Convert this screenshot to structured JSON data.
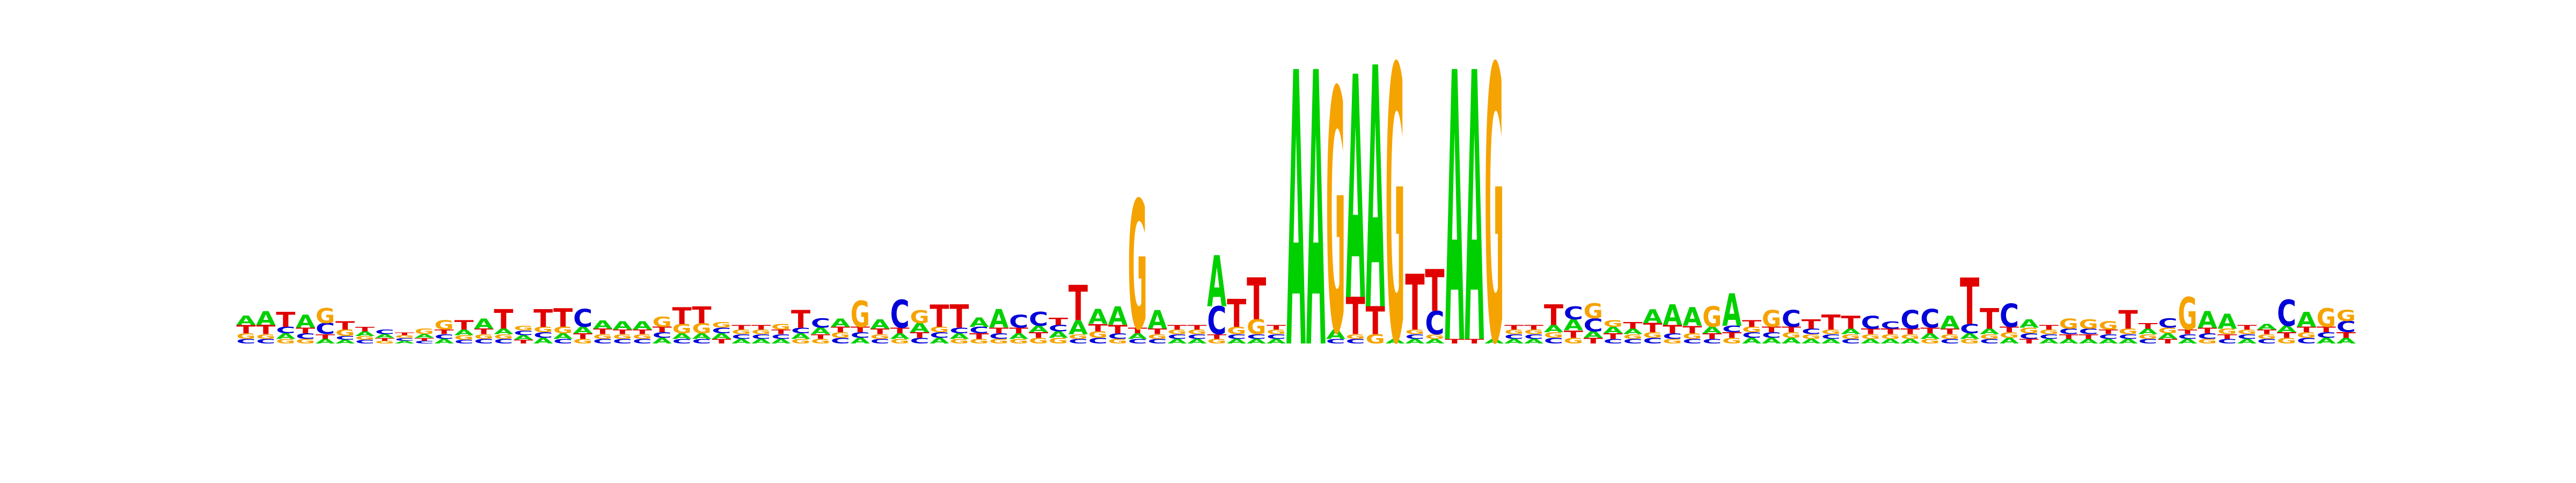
{
  "chart_data": {
    "type": "sequence-logo",
    "alphabet": [
      "A",
      "C",
      "G",
      "T"
    ],
    "colors": {
      "A": "#00d000",
      "C": "#0000d8",
      "G": "#f5a300",
      "T": "#e00000"
    },
    "y_axis_max_bits": 2.0,
    "positions": [
      {
        "A": 0.1,
        "C": 0.05,
        "G": 0.06,
        "T": 0.09
      },
      {
        "A": 0.15,
        "C": 0.05,
        "G": 0.05,
        "T": 0.1
      },
      {
        "A": 0.06,
        "C": 0.07,
        "G": 0.05,
        "T": 0.16
      },
      {
        "A": 0.14,
        "C": 0.06,
        "G": 0.05,
        "T": 0.06
      },
      {
        "A": 0.05,
        "C": 0.12,
        "G": 0.16,
        "T": 0.05
      },
      {
        "A": 0.04,
        "C": 0.04,
        "G": 0.07,
        "T": 0.09
      },
      {
        "A": 0.05,
        "C": 0.04,
        "G": 0.04,
        "T": 0.05
      },
      {
        "A": 0.04,
        "C": 0.05,
        "G": 0.03,
        "T": 0.03
      },
      {
        "A": 0.03,
        "C": 0.03,
        "G": 0.03,
        "T": 0.03
      },
      {
        "A": 0.04,
        "C": 0.03,
        "G": 0.06,
        "T": 0.03
      },
      {
        "A": 0.05,
        "C": 0.05,
        "G": 0.1,
        "T": 0.05
      },
      {
        "A": 0.06,
        "C": 0.04,
        "G": 0.05,
        "T": 0.1
      },
      {
        "A": 0.11,
        "C": 0.05,
        "G": 0.05,
        "T": 0.06
      },
      {
        "A": 0.06,
        "C": 0.05,
        "G": 0.05,
        "T": 0.21
      },
      {
        "A": 0.05,
        "C": 0.05,
        "G": 0.05,
        "T": 0.04
      },
      {
        "A": 0.06,
        "C": 0.06,
        "G": 0.06,
        "T": 0.19
      },
      {
        "A": 0.06,
        "C": 0.05,
        "G": 0.07,
        "T": 0.2
      },
      {
        "A": 0.07,
        "C": 0.19,
        "G": 0.05,
        "T": 0.06
      },
      {
        "A": 0.09,
        "C": 0.05,
        "G": 0.05,
        "T": 0.06
      },
      {
        "A": 0.09,
        "C": 0.05,
        "G": 0.05,
        "T": 0.05
      },
      {
        "A": 0.09,
        "C": 0.05,
        "G": 0.05,
        "T": 0.05
      },
      {
        "A": 0.06,
        "C": 0.06,
        "G": 0.11,
        "T": 0.06
      },
      {
        "A": 0.06,
        "C": 0.05,
        "G": 0.1,
        "T": 0.18
      },
      {
        "A": 0.06,
        "C": 0.05,
        "G": 0.11,
        "T": 0.18
      },
      {
        "A": 0.06,
        "C": 0.06,
        "G": 0.06,
        "T": 0.05
      },
      {
        "A": 0.05,
        "C": 0.05,
        "G": 0.05,
        "T": 0.05
      },
      {
        "A": 0.05,
        "C": 0.05,
        "G": 0.05,
        "T": 0.05
      },
      {
        "A": 0.05,
        "C": 0.05,
        "G": 0.06,
        "T": 0.05
      },
      {
        "A": 0.06,
        "C": 0.06,
        "G": 0.05,
        "T": 0.19
      },
      {
        "A": 0.07,
        "C": 0.1,
        "G": 0.05,
        "T": 0.05
      },
      {
        "A": 0.09,
        "C": 0.06,
        "G": 0.06,
        "T": 0.06
      },
      {
        "A": 0.06,
        "C": 0.06,
        "G": 0.28,
        "T": 0.06
      },
      {
        "A": 0.1,
        "C": 0.05,
        "G": 0.05,
        "T": 0.06
      },
      {
        "A": 0.06,
        "C": 0.3,
        "G": 0.05,
        "T": 0.06
      },
      {
        "A": 0.1,
        "C": 0.06,
        "G": 0.14,
        "T": 0.06
      },
      {
        "A": 0.06,
        "C": 0.06,
        "G": 0.06,
        "T": 0.24
      },
      {
        "A": 0.06,
        "C": 0.06,
        "G": 0.05,
        "T": 0.25
      },
      {
        "A": 0.1,
        "C": 0.07,
        "G": 0.05,
        "T": 0.06
      },
      {
        "A": 0.2,
        "C": 0.06,
        "G": 0.05,
        "T": 0.06
      },
      {
        "A": 0.06,
        "C": 0.14,
        "G": 0.05,
        "T": 0.06
      },
      {
        "A": 0.07,
        "C": 0.15,
        "G": 0.06,
        "T": 0.06
      },
      {
        "A": 0.07,
        "C": 0.07,
        "G": 0.06,
        "T": 0.08
      },
      {
        "A": 0.15,
        "C": 0.05,
        "G": 0.05,
        "T": 0.38
      },
      {
        "A": 0.16,
        "C": 0.06,
        "G": 0.07,
        "T": 0.08
      },
      {
        "A": 0.2,
        "C": 0.06,
        "G": 0.05,
        "T": 0.09
      },
      {
        "A": 0.06,
        "C": 0.05,
        "G": 1.38,
        "T": 0.06
      },
      {
        "A": 0.2,
        "C": 0.05,
        "G": 0.05,
        "T": 0.06
      },
      {
        "A": 0.05,
        "C": 0.05,
        "G": 0.05,
        "T": 0.05
      },
      {
        "A": 0.05,
        "C": 0.05,
        "G": 0.05,
        "T": 0.05
      },
      {
        "A": 0.55,
        "C": 0.3,
        "G": 0.05,
        "T": 0.05
      },
      {
        "A": 0.05,
        "C": 0.05,
        "G": 0.08,
        "T": 0.3
      },
      {
        "A": 0.05,
        "C": 0.05,
        "G": 0.16,
        "T": 0.45
      },
      {
        "A": 0.05,
        "C": 0.05,
        "G": 0.05,
        "T": 0.05
      },
      {
        "A": 2.95,
        "C": 0.0,
        "G": 0.0,
        "T": 0.0
      },
      {
        "A": 2.95,
        "C": 0.0,
        "G": 0.0,
        "T": 0.0
      },
      {
        "A": 0.1,
        "C": 0.05,
        "G": 2.6,
        "T": 0.0
      },
      {
        "A": 2.4,
        "C": 0.05,
        "G": 0.05,
        "T": 0.4
      },
      {
        "A": 2.6,
        "C": 0.0,
        "G": 0.1,
        "T": 0.3
      },
      {
        "A": 0.05,
        "C": 0.0,
        "G": 2.95,
        "T": 0.0
      },
      {
        "A": 0.05,
        "C": 0.05,
        "G": 0.05,
        "T": 0.6
      },
      {
        "A": 0.05,
        "C": 0.25,
        "G": 0.05,
        "T": 0.45
      },
      {
        "A": 2.9,
        "C": 0.0,
        "G": 0.0,
        "T": 0.05
      },
      {
        "A": 2.9,
        "C": 0.0,
        "G": 0.0,
        "T": 0.05
      },
      {
        "A": 0.05,
        "C": 0.0,
        "G": 2.95,
        "T": 0.0
      },
      {
        "A": 0.05,
        "C": 0.05,
        "G": 0.05,
        "T": 0.05
      },
      {
        "A": 0.05,
        "C": 0.05,
        "G": 0.05,
        "T": 0.05
      },
      {
        "A": 0.08,
        "C": 0.06,
        "G": 0.06,
        "T": 0.22
      },
      {
        "A": 0.12,
        "C": 0.14,
        "G": 0.06,
        "T": 0.08
      },
      {
        "A": 0.07,
        "C": 0.14,
        "G": 0.16,
        "T": 0.06
      },
      {
        "A": 0.07,
        "C": 0.05,
        "G": 0.07,
        "T": 0.06
      },
      {
        "A": 0.06,
        "C": 0.05,
        "G": 0.05,
        "T": 0.07
      },
      {
        "A": 0.15,
        "C": 0.06,
        "G": 0.06,
        "T": 0.1
      },
      {
        "A": 0.22,
        "C": 0.06,
        "G": 0.05,
        "T": 0.09
      },
      {
        "A": 0.2,
        "C": 0.05,
        "G": 0.06,
        "T": 0.08
      },
      {
        "A": 0.07,
        "C": 0.05,
        "G": 0.22,
        "T": 0.06
      },
      {
        "A": 0.35,
        "C": 0.07,
        "G": 0.06,
        "T": 0.06
      },
      {
        "A": 0.06,
        "C": 0.06,
        "G": 0.06,
        "T": 0.07
      },
      {
        "A": 0.06,
        "C": 0.06,
        "G": 0.18,
        "T": 0.06
      },
      {
        "A": 0.06,
        "C": 0.18,
        "G": 0.06,
        "T": 0.06
      },
      {
        "A": 0.05,
        "C": 0.06,
        "G": 0.05,
        "T": 0.1
      },
      {
        "A": 0.05,
        "C": 0.05,
        "G": 0.05,
        "T": 0.16
      },
      {
        "A": 0.06,
        "C": 0.05,
        "G": 0.05,
        "T": 0.14
      },
      {
        "A": 0.05,
        "C": 0.14,
        "G": 0.05,
        "T": 0.06
      },
      {
        "A": 0.05,
        "C": 0.08,
        "G": 0.05,
        "T": 0.06
      },
      {
        "A": 0.05,
        "C": 0.2,
        "G": 0.05,
        "T": 0.06
      },
      {
        "A": 0.06,
        "C": 0.2,
        "G": 0.05,
        "T": 0.06
      },
      {
        "A": 0.14,
        "C": 0.05,
        "G": 0.05,
        "T": 0.06
      },
      {
        "A": 0.06,
        "C": 0.1,
        "G": 0.05,
        "T": 0.5
      },
      {
        "A": 0.06,
        "C": 0.05,
        "G": 0.05,
        "T": 0.22
      },
      {
        "A": 0.06,
        "C": 0.25,
        "G": 0.06,
        "T": 0.06
      },
      {
        "A": 0.09,
        "C": 0.06,
        "G": 0.06,
        "T": 0.05
      },
      {
        "A": 0.05,
        "C": 0.05,
        "G": 0.05,
        "T": 0.05
      },
      {
        "A": 0.05,
        "C": 0.06,
        "G": 0.11,
        "T": 0.05
      },
      {
        "A": 0.05,
        "C": 0.06,
        "G": 0.1,
        "T": 0.05
      },
      {
        "A": 0.05,
        "C": 0.05,
        "G": 0.09,
        "T": 0.05
      },
      {
        "A": 0.05,
        "C": 0.05,
        "G": 0.06,
        "T": 0.2
      },
      {
        "A": 0.06,
        "C": 0.05,
        "G": 0.05,
        "T": 0.06
      },
      {
        "A": 0.06,
        "C": 0.1,
        "G": 0.06,
        "T": 0.05
      },
      {
        "A": 0.05,
        "C": 0.05,
        "G": 0.35,
        "T": 0.05
      },
      {
        "A": 0.18,
        "C": 0.06,
        "G": 0.05,
        "T": 0.06
      },
      {
        "A": 0.16,
        "C": 0.05,
        "G": 0.06,
        "T": 0.05
      },
      {
        "A": 0.05,
        "C": 0.05,
        "G": 0.05,
        "T": 0.05
      },
      {
        "A": 0.06,
        "C": 0.05,
        "G": 0.05,
        "T": 0.05
      },
      {
        "A": 0.07,
        "C": 0.28,
        "G": 0.06,
        "T": 0.06
      },
      {
        "A": 0.16,
        "C": 0.06,
        "G": 0.06,
        "T": 0.06
      },
      {
        "A": 0.06,
        "C": 0.06,
        "G": 0.2,
        "T": 0.06
      },
      {
        "A": 0.06,
        "C": 0.12,
        "G": 0.12,
        "T": 0.06
      }
    ]
  }
}
